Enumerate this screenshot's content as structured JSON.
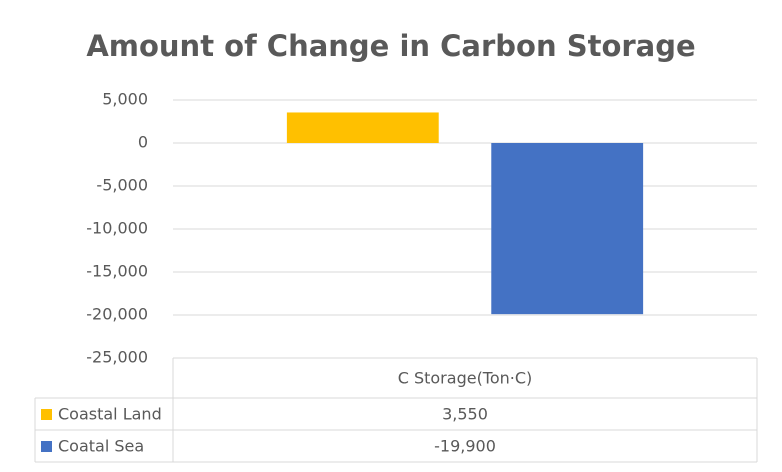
{
  "chart_data": {
    "type": "bar",
    "title": "Amount of Change in Carbon Storage",
    "categories": [
      "C Storage(Ton·C)"
    ],
    "series": [
      {
        "name": "Coastal Land",
        "color": "#FFC000",
        "values": [
          3550
        ],
        "value_labels": [
          "3,550"
        ]
      },
      {
        "name": "Coatal Sea",
        "color": "#4472C4",
        "values": [
          -19900
        ],
        "value_labels": [
          "-19,900"
        ]
      }
    ],
    "ylim": [
      -25000,
      5000
    ],
    "yticks": [
      {
        "value": 5000,
        "label": "5,000"
      },
      0,
      {
        "value": -5000,
        "label": "-5,000"
      },
      {
        "value": -10000,
        "label": "-10,000"
      },
      {
        "value": -15000,
        "label": "-15,000"
      },
      {
        "value": -20000,
        "label": "-20,000"
      },
      {
        "value": -25000,
        "label": "-25,000"
      }
    ],
    "grid": true
  }
}
